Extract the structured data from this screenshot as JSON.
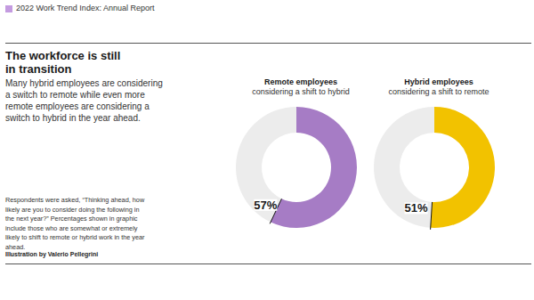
{
  "page": {
    "header": "2022 Work Trend Index: Annual Report",
    "title": "The workforce is still in transition",
    "description": "Many hybrid employees are considering a switch to remote while even more remote employees are considering a switch to hybrid in the year ahead.",
    "note": "Respondents were asked, “Thinking ahead, how likely are you to consider doing the following in the next year?” Percentages shown in graphic include those who are somewhat or extremely likely to shift to remote or hybrid work in the year ahead.",
    "credit": "Illustration by Valerio Pellegrini"
  },
  "chart_data": [
    {
      "type": "pie",
      "title": "Remote employees",
      "subtitle": "considering a shift to hybrid",
      "categories": [
        null,
        null
      ],
      "values": [
        57,
        43
      ],
      "value_labels": [
        "57%",
        null
      ],
      "colors": [
        "#a67cc5",
        "#ececec"
      ],
      "data_labels": true
    },
    {
      "type": "pie",
      "title": "Hybrid employees",
      "subtitle": "considering a shift to remote",
      "categories": [
        null,
        null
      ],
      "values": [
        51,
        49
      ],
      "value_labels": [
        "51%",
        null
      ],
      "colors": [
        "#f2c200",
        "#ececec"
      ],
      "data_labels": true
    }
  ]
}
